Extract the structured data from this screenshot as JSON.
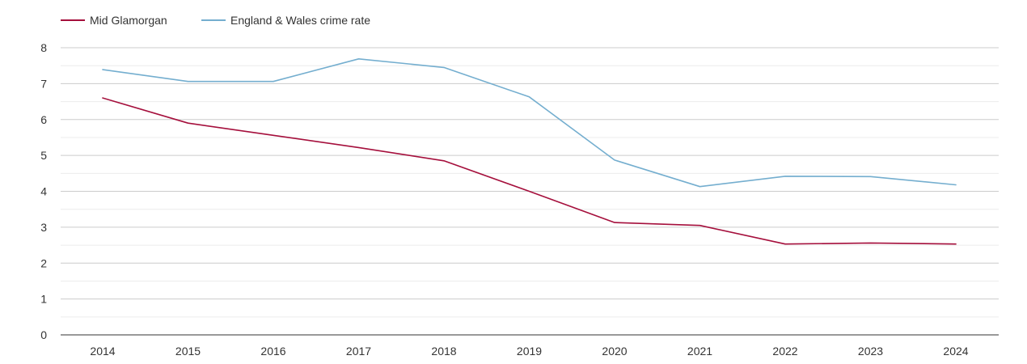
{
  "chart_data": {
    "type": "line",
    "title": "",
    "xlabel": "",
    "ylabel": "",
    "categories": [
      "2014",
      "2015",
      "2016",
      "2017",
      "2018",
      "2019",
      "2020",
      "2021",
      "2022",
      "2023",
      "2024"
    ],
    "ylim": [
      0,
      8
    ],
    "yticks": [
      0,
      1,
      2,
      3,
      4,
      5,
      6,
      7,
      8
    ],
    "grid": true,
    "legend_position": "top-left",
    "series": [
      {
        "name": "Mid Glamorgan",
        "color": "#a50f3c",
        "values": [
          6.6,
          5.9,
          5.56,
          5.22,
          4.85,
          4.0,
          3.13,
          3.05,
          2.53,
          2.56,
          2.53
        ]
      },
      {
        "name": "England & Wales crime rate",
        "color": "#74aecf",
        "values": [
          7.39,
          7.06,
          7.06,
          7.69,
          7.45,
          6.63,
          4.87,
          4.13,
          4.42,
          4.41,
          4.18
        ]
      }
    ]
  }
}
